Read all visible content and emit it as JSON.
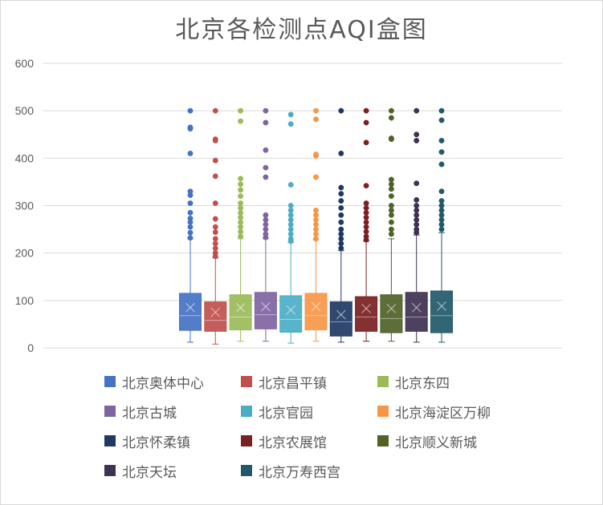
{
  "chart_data": {
    "type": "box",
    "title": "北京各检测点AQI盒图",
    "ylim": [
      0,
      600
    ],
    "yticks": [
      0,
      100,
      200,
      300,
      400,
      500,
      600
    ],
    "grid": true,
    "legend_position": "bottom",
    "series": [
      {
        "name": "北京奥体中心",
        "color": "#4472C4",
        "whisker_low": 12,
        "q1": 37,
        "median": 68,
        "q3": 115,
        "whisker_high": 230,
        "mean": 85,
        "outliers": [
          500,
          465,
          462,
          410,
          330,
          322,
          305,
          285,
          273,
          265,
          255,
          243,
          232
        ]
      },
      {
        "name": "北京昌平镇",
        "color": "#C0504D",
        "whisker_low": 8,
        "q1": 35,
        "median": 58,
        "q3": 97,
        "whisker_high": 190,
        "mean": 75,
        "outliers": [
          500,
          440,
          437,
          395,
          362,
          305,
          272,
          255,
          244,
          230,
          220,
          210,
          200,
          193
        ]
      },
      {
        "name": "北京东四",
        "color": "#9BBB59",
        "whisker_low": 14,
        "q1": 38,
        "median": 65,
        "q3": 112,
        "whisker_high": 230,
        "mean": 85,
        "outliers": [
          500,
          478,
          357,
          345,
          333,
          320,
          305,
          295,
          285,
          275,
          265,
          255,
          245,
          235
        ]
      },
      {
        "name": "北京古城",
        "color": "#8064A2",
        "whisker_low": 14,
        "q1": 40,
        "median": 70,
        "q3": 117,
        "whisker_high": 230,
        "mean": 87,
        "outliers": [
          500,
          475,
          417,
          380,
          360,
          280,
          270,
          260,
          250,
          240,
          233
        ]
      },
      {
        "name": "北京官园",
        "color": "#4BACC6",
        "whisker_low": 10,
        "q1": 33,
        "median": 60,
        "q3": 110,
        "whisker_high": 222,
        "mean": 80,
        "outliers": [
          492,
          472,
          344,
          300,
          290,
          280,
          270,
          260,
          250,
          240,
          230,
          225
        ]
      },
      {
        "name": "北京海淀区万柳",
        "color": "#F79646",
        "whisker_low": 14,
        "q1": 38,
        "median": 68,
        "q3": 115,
        "whisker_high": 228,
        "mean": 87,
        "outliers": [
          500,
          482,
          408,
          405,
          360,
          290,
          280,
          270,
          260,
          250,
          240,
          230
        ]
      },
      {
        "name": "北京怀柔镇",
        "color": "#1F3864",
        "whisker_low": 12,
        "q1": 25,
        "median": 55,
        "q3": 97,
        "whisker_high": 205,
        "mean": 70,
        "outliers": [
          500,
          410,
          338,
          325,
          310,
          295,
          280,
          265,
          250,
          240,
          230,
          220,
          210
        ]
      },
      {
        "name": "北京农展馆",
        "color": "#7B2020",
        "whisker_low": 14,
        "q1": 35,
        "median": 65,
        "q3": 108,
        "whisker_high": 225,
        "mean": 83,
        "outliers": [
          500,
          475,
          433,
          342,
          305,
          295,
          285,
          275,
          265,
          255,
          245,
          235,
          228
        ]
      },
      {
        "name": "北京顺义新城",
        "color": "#4F6228",
        "whisker_low": 14,
        "q1": 32,
        "median": 62,
        "q3": 112,
        "whisker_high": 230,
        "mean": 83,
        "outliers": [
          500,
          485,
          442,
          440,
          355,
          345,
          335,
          320,
          300,
          290,
          280,
          265,
          250,
          240
        ]
      },
      {
        "name": "北京天坛",
        "color": "#3F3151",
        "whisker_low": 12,
        "q1": 35,
        "median": 65,
        "q3": 117,
        "whisker_high": 238,
        "mean": 85,
        "outliers": [
          500,
          450,
          437,
          347,
          312,
          300,
          290,
          280,
          270,
          260,
          250,
          243
        ]
      },
      {
        "name": "北京万寿西宫",
        "color": "#215968",
        "whisker_low": 12,
        "q1": 32,
        "median": 68,
        "q3": 120,
        "whisker_high": 243,
        "mean": 88,
        "outliers": [
          500,
          480,
          437,
          413,
          387,
          330,
          310,
          300,
          290,
          280,
          270,
          260,
          250
        ]
      }
    ]
  }
}
